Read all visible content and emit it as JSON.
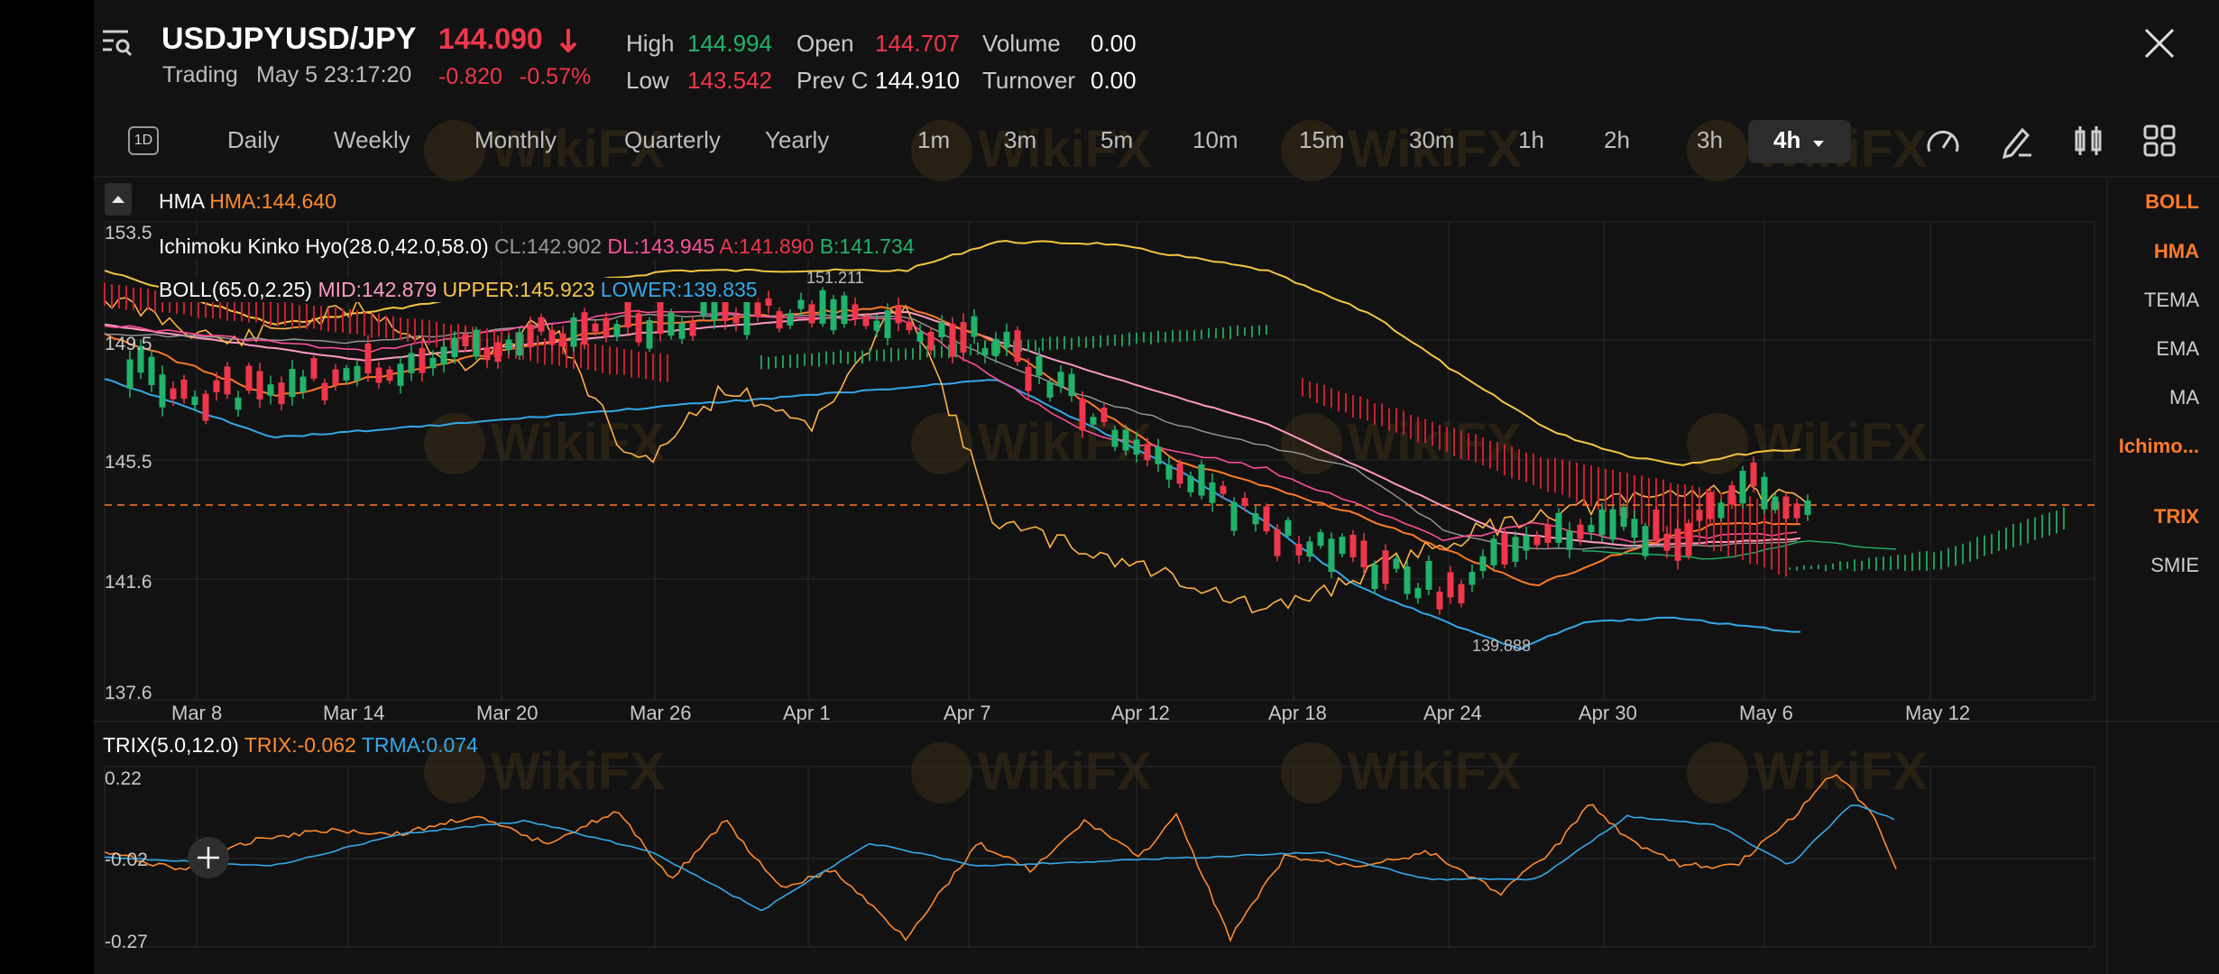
{
  "header": {
    "symbol": "USDJPY",
    "name": "USD/JPY",
    "price": "144.090",
    "status": "Trading",
    "datetime": "May 5 23:17:20",
    "change": "-0.820",
    "change_pct": "-0.57%",
    "high_label": "High",
    "high": "144.994",
    "low_label": "Low",
    "low": "143.542",
    "open_label": "Open",
    "open": "144.707",
    "prevc_label": "Prev C",
    "prevc": "144.910",
    "volume_label": "Volume",
    "volume": "0.00",
    "turnover_label": "Turnover",
    "turnover": "0.00"
  },
  "timeframes": [
    "Daily",
    "Weekly",
    "Monthly",
    "Quarterly",
    "Yearly",
    "1m",
    "3m",
    "5m",
    "10m",
    "15m",
    "30m",
    "1h",
    "2h",
    "3h"
  ],
  "active_timeframe": "4h",
  "tf_icon_label": "1D",
  "legends": {
    "hma_name": "HMA",
    "hma_val": "HMA:144.640",
    "ichi_name": "Ichimoku Kinko Hyo(28.0,42.0,58.0)",
    "ichi_cl": "CL:142.902",
    "ichi_dl": "DL:143.945",
    "ichi_a": "A:141.890",
    "ichi_b": "B:141.734",
    "boll_name": "BOLL(65.0,2.25)",
    "boll_mid": "MID:142.879",
    "boll_upper": "UPPER:145.923",
    "boll_lower": "LOWER:139.835",
    "trix_name": "TRIX(5.0,12.0)",
    "trix_val": "TRIX:-0.062",
    "trma_val": "TRMA:0.074"
  },
  "annotations": {
    "high_mark": "151.211",
    "low_mark": "139.888"
  },
  "price_axis": [
    "153.5",
    "149.5",
    "145.5",
    "141.6",
    "137.6"
  ],
  "trix_axis": [
    "0.22",
    "-0.02",
    "-0.27"
  ],
  "date_axis": [
    "Mar 8",
    "Mar 14",
    "Mar 20",
    "Mar 26",
    "Apr 1",
    "Apr 7",
    "Apr 12",
    "Apr 18",
    "Apr 24",
    "Apr 30",
    "May 6",
    "May 12"
  ],
  "indicators": [
    {
      "label": "BOLL",
      "active": true
    },
    {
      "label": "HMA",
      "active": true
    },
    {
      "label": "TEMA",
      "active": false
    },
    {
      "label": "EMA",
      "active": false
    },
    {
      "label": "MA",
      "active": false
    },
    {
      "label": "Ichimo...",
      "active": true
    },
    {
      "label": "TRIX",
      "active": true
    },
    {
      "label": "SMIE",
      "active": false
    }
  ],
  "watermark": "WikiFX",
  "colors": {
    "up": "#21b36b",
    "down": "#f0364a",
    "accent": "#ff7a2a",
    "bg": "#121212"
  },
  "icons": [
    "menu-search-icon",
    "close-icon",
    "collapse-up-icon",
    "speed-gauge-icon",
    "draw-pen-icon",
    "candle-style-icon",
    "layout-grid-icon",
    "crosshair-icon"
  ]
}
